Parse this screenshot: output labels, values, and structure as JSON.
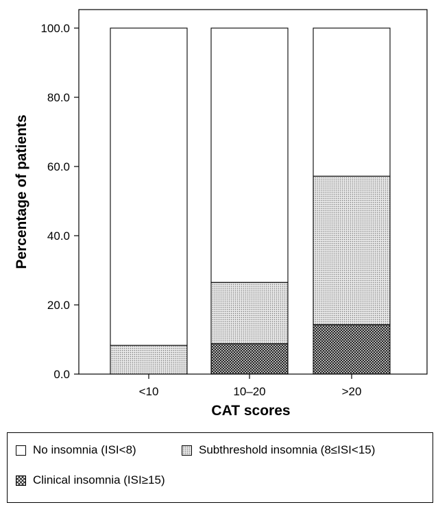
{
  "chart_data": {
    "type": "bar",
    "stacked": true,
    "xlabel": "CAT scores",
    "ylabel": "Percentage of patients",
    "ylim": [
      0,
      100
    ],
    "yticks": [
      "0.0",
      "20.0",
      "40.0",
      "60.0",
      "80.0",
      "100.0"
    ],
    "categories": [
      "<10",
      "10–20",
      ">20"
    ],
    "series": [
      {
        "key": "clinical",
        "values": [
          0.0,
          8.8,
          14.3
        ],
        "pattern": "crosshatch"
      },
      {
        "key": "subthreshold",
        "values": [
          8.3,
          17.7,
          42.9
        ],
        "pattern": "dots"
      },
      {
        "key": "none",
        "values": [
          91.7,
          73.5,
          42.8
        ],
        "pattern": "white"
      }
    ],
    "grid": false,
    "legend_position": "bottom"
  },
  "legend": {
    "items": [
      {
        "label": "No insomnia (ISI<8)",
        "pattern": "white"
      },
      {
        "label": "Subthreshold insomnia (8≤ISI<15)",
        "pattern": "dots"
      },
      {
        "label": "Clinical insomnia (ISI≥15)",
        "pattern": "crosshatch"
      }
    ]
  }
}
